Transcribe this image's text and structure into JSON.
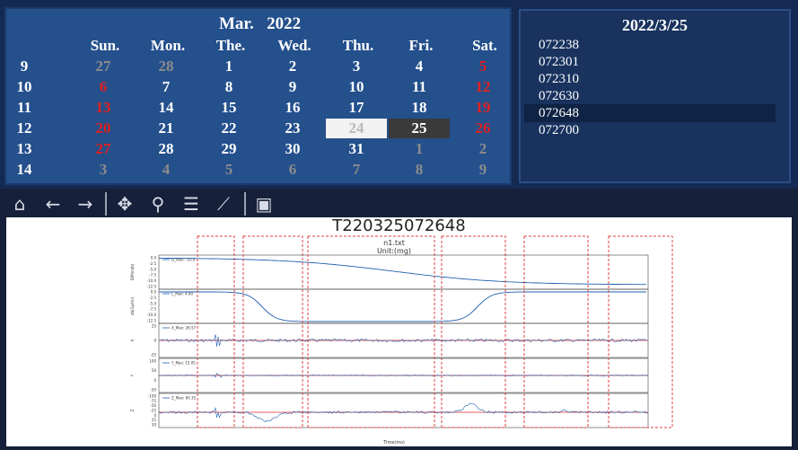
{
  "calendar": {
    "month": "Mar.",
    "year": "2022",
    "headers": [
      "Sun.",
      "Mon.",
      "The.",
      "Wed.",
      "Thu.",
      "Fri.",
      "Sat."
    ],
    "weeks": [
      {
        "week": "9",
        "days": [
          {
            "d": "27",
            "s": "dim"
          },
          {
            "d": "28",
            "s": "dim"
          },
          {
            "d": "1",
            "s": "cur"
          },
          {
            "d": "2",
            "s": "cur"
          },
          {
            "d": "3",
            "s": "cur"
          },
          {
            "d": "4",
            "s": "cur"
          },
          {
            "d": "5",
            "s": "red"
          }
        ]
      },
      {
        "week": "10",
        "days": [
          {
            "d": "6",
            "s": "red"
          },
          {
            "d": "7",
            "s": "cur"
          },
          {
            "d": "8",
            "s": "cur"
          },
          {
            "d": "9",
            "s": "cur"
          },
          {
            "d": "10",
            "s": "cur"
          },
          {
            "d": "11",
            "s": "cur"
          },
          {
            "d": "12",
            "s": "red"
          }
        ]
      },
      {
        "week": "11",
        "days": [
          {
            "d": "13",
            "s": "red"
          },
          {
            "d": "14",
            "s": "cur"
          },
          {
            "d": "15",
            "s": "cur"
          },
          {
            "d": "16",
            "s": "cur"
          },
          {
            "d": "17",
            "s": "cur"
          },
          {
            "d": "18",
            "s": "cur"
          },
          {
            "d": "19",
            "s": "red"
          }
        ]
      },
      {
        "week": "12",
        "days": [
          {
            "d": "20",
            "s": "red"
          },
          {
            "d": "21",
            "s": "cur"
          },
          {
            "d": "22",
            "s": "cur"
          },
          {
            "d": "23",
            "s": "cur"
          },
          {
            "d": "24",
            "s": "sel-light"
          },
          {
            "d": "25",
            "s": "sel-dark"
          },
          {
            "d": "26",
            "s": "red"
          }
        ]
      },
      {
        "week": "13",
        "days": [
          {
            "d": "27",
            "s": "red"
          },
          {
            "d": "28",
            "s": "cur"
          },
          {
            "d": "29",
            "s": "cur"
          },
          {
            "d": "30",
            "s": "cur"
          },
          {
            "d": "31",
            "s": "cur"
          },
          {
            "d": "1",
            "s": "dim"
          },
          {
            "d": "2",
            "s": "dim"
          }
        ]
      },
      {
        "week": "14",
        "days": [
          {
            "d": "3",
            "s": "dim"
          },
          {
            "d": "4",
            "s": "dim"
          },
          {
            "d": "5",
            "s": "dim"
          },
          {
            "d": "6",
            "s": "dim"
          },
          {
            "d": "7",
            "s": "dim"
          },
          {
            "d": "8",
            "s": "dim"
          },
          {
            "d": "9",
            "s": "dim"
          }
        ]
      }
    ]
  },
  "file_list": {
    "date": "2022/3/25",
    "items": [
      "072238",
      "072301",
      "072310",
      "072630",
      "072648",
      "072700"
    ],
    "selected": "072648"
  },
  "toolbar": {
    "icons": [
      "home-icon",
      "back-arrow-icon",
      "forward-arrow-icon",
      "pan-icon",
      "zoom-icon",
      "configure-subplots-icon",
      "edit-axis-icon",
      "save-icon"
    ]
  },
  "plot": {
    "title": "T220325072648",
    "inner_title": "n1.txt",
    "inner_subtitle": "Unit:(mg)",
    "x_label": "Time(ms)",
    "subplots": [
      {
        "legend": "D_Max: -10.0",
        "ylabel": "D(Mmdb)",
        "yticks": [
          "0.0",
          "-2.5",
          "-5.0",
          "-7.5",
          "-10.0",
          "-12.5"
        ]
      },
      {
        "legend": "L_Max: 4.90",
        "ylabel": "db(Gy/ml)",
        "yticks": [
          "0.0",
          "-2.5",
          "-5.0",
          "-7.5",
          "-10.0",
          "-12.5"
        ]
      },
      {
        "legend": "X_Max: 26.57",
        "ylabel": "X",
        "yticks": [
          "25",
          "0",
          "-25"
        ]
      },
      {
        "legend": "Y_Max: 15.05",
        "ylabel": "Y",
        "yticks": [
          "100",
          "50",
          "0",
          "-50"
        ]
      },
      {
        "legend": "Z_Max: 60.35",
        "ylabel": "Z",
        "yticks": [
          "-100",
          "-75",
          "-50",
          "-25",
          "0",
          "25",
          "50"
        ]
      }
    ],
    "colors": {
      "signal": "#1f5fb0",
      "threshold": "#d62728",
      "box": "#e04040"
    }
  }
}
